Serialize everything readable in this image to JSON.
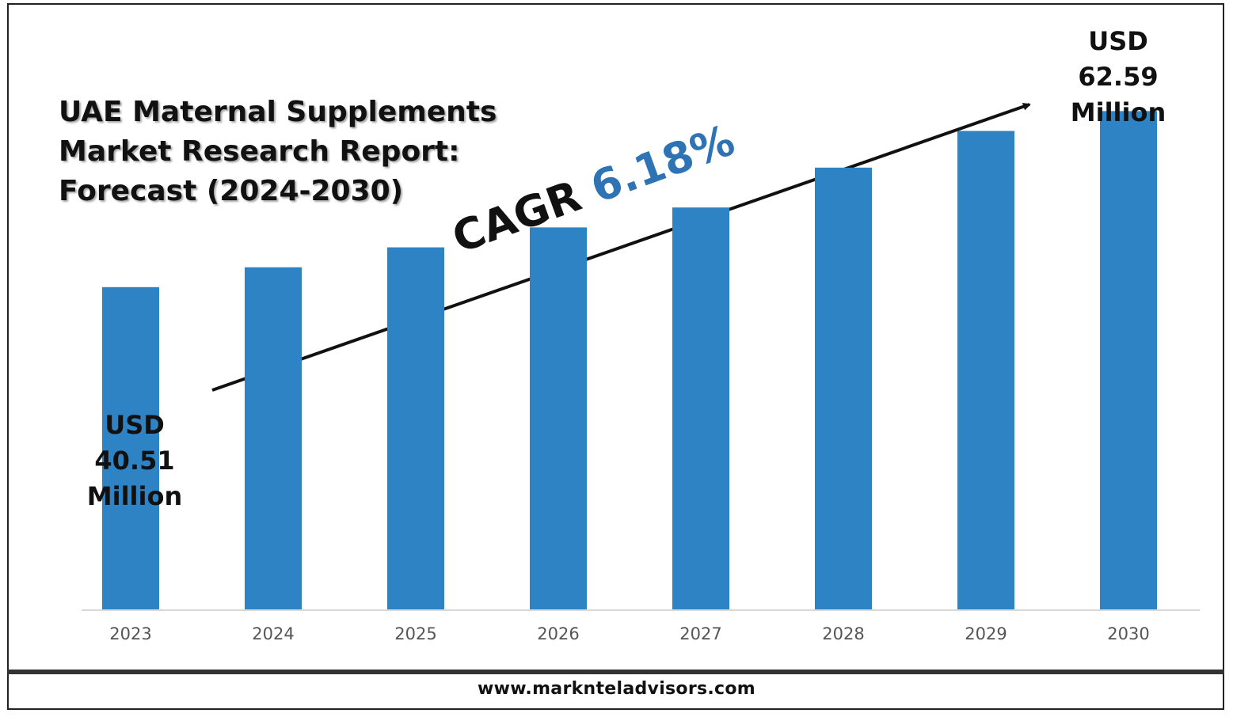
{
  "title_lines": [
    "UAE Maternal Supplements",
    "Market Research Report:",
    "Forecast (2024-2030)"
  ],
  "cagr": {
    "label": "CAGR",
    "value": "6.18%"
  },
  "callout_start": {
    "currency": "USD",
    "value": "40.51",
    "unit": "Million"
  },
  "callout_end": {
    "currency": "USD",
    "value": "62.59",
    "unit": "Million"
  },
  "footer": "www.marknteladvisors.com",
  "colors": {
    "bar": "#2e83c5",
    "accent": "#2e74b5"
  },
  "chart_data": {
    "type": "bar",
    "title": "UAE Maternal Supplements Market Research Report: Forecast (2024-2030)",
    "categories": [
      "2023",
      "2024",
      "2025",
      "2026",
      "2027",
      "2028",
      "2029",
      "2030"
    ],
    "values": [
      40.51,
      43.0,
      45.5,
      48.0,
      50.5,
      55.5,
      60.1,
      62.59
    ],
    "ylim": [
      0,
      66
    ],
    "xlabel": "",
    "ylabel": "",
    "grid": false,
    "legend": "none"
  }
}
